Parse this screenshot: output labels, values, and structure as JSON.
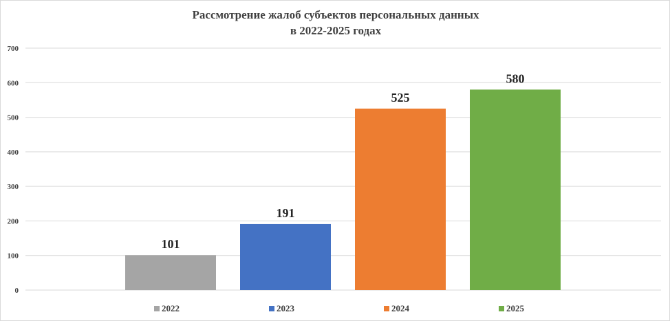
{
  "chart_data": {
    "type": "bar",
    "title": [
      "Рассмотрение жалоб субъектов персональных данных",
      "в 2022-2025 годах"
    ],
    "categories": [
      "2022",
      "2023",
      "2024",
      "2025"
    ],
    "values": [
      101,
      191,
      525,
      580
    ],
    "colors": [
      "#a5a5a5",
      "#4472c4",
      "#ed7d31",
      "#70ad47"
    ],
    "ylim": [
      0,
      700
    ],
    "yticks": [
      0,
      100,
      200,
      300,
      400,
      500,
      600,
      700
    ],
    "grid": true,
    "legend_position": "bottom",
    "xlabel": "",
    "ylabel": ""
  }
}
